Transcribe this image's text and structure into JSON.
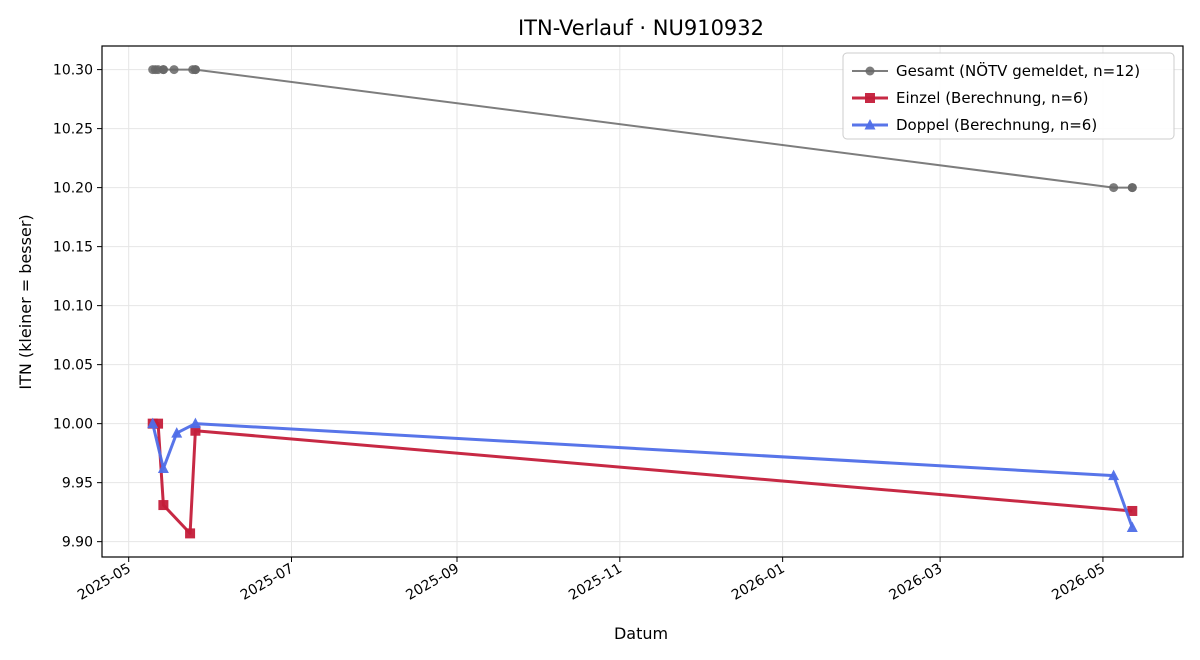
{
  "chart_data": {
    "type": "line",
    "title": "ITN-Verlauf · NU910932",
    "xlabel": "Datum",
    "ylabel": "ITN  (kleiner = besser)",
    "x_ticks": [
      "2025-05",
      "2025-07",
      "2025-09",
      "2025-11",
      "2026-01",
      "2026-03",
      "2026-05"
    ],
    "y_ticks": [
      "9.90",
      "9.95",
      "10.00",
      "10.05",
      "10.10",
      "10.15",
      "10.20",
      "10.25",
      "10.30"
    ],
    "xlim": [
      "2025-04-21",
      "2026-05-31"
    ],
    "ylim": [
      9.887,
      10.32
    ],
    "grid": true,
    "legend_position": "top-right",
    "series": [
      {
        "name": "Gesamt (NÖTV gemeldet, n=12)",
        "color": "#666666",
        "marker": "circle",
        "points": [
          {
            "x": "2025-05-10",
            "y": 10.3
          },
          {
            "x": "2025-05-11",
            "y": 10.3
          },
          {
            "x": "2025-05-12",
            "y": 10.3
          },
          {
            "x": "2025-05-14",
            "y": 10.3
          },
          {
            "x": "2025-05-14",
            "y": 10.3
          },
          {
            "x": "2025-05-18",
            "y": 10.3
          },
          {
            "x": "2025-05-25",
            "y": 10.3
          },
          {
            "x": "2025-05-26",
            "y": 10.3
          },
          {
            "x": "2025-05-26",
            "y": 10.3
          },
          {
            "x": "2026-05-05",
            "y": 10.2
          },
          {
            "x": "2026-05-12",
            "y": 10.2
          },
          {
            "x": "2026-05-12",
            "y": 10.2
          }
        ]
      },
      {
        "name": "Einzel (Berechnung, n=6)",
        "color": "#c41e3a",
        "marker": "square",
        "points": [
          {
            "x": "2025-05-10",
            "y": 10.0
          },
          {
            "x": "2025-05-12",
            "y": 10.0
          },
          {
            "x": "2025-05-14",
            "y": 9.931
          },
          {
            "x": "2025-05-24",
            "y": 9.907
          },
          {
            "x": "2025-05-26",
            "y": 9.994
          },
          {
            "x": "2026-05-12",
            "y": 9.926
          }
        ]
      },
      {
        "name": "Doppel (Berechnung, n=6)",
        "color": "#4f6ee8",
        "marker": "triangle",
        "points": [
          {
            "x": "2025-05-10",
            "y": 10.0
          },
          {
            "x": "2025-05-14",
            "y": 9.962
          },
          {
            "x": "2025-05-19",
            "y": 9.992
          },
          {
            "x": "2025-05-26",
            "y": 10.0
          },
          {
            "x": "2026-05-05",
            "y": 9.956
          },
          {
            "x": "2026-05-12",
            "y": 9.912
          }
        ]
      }
    ]
  }
}
